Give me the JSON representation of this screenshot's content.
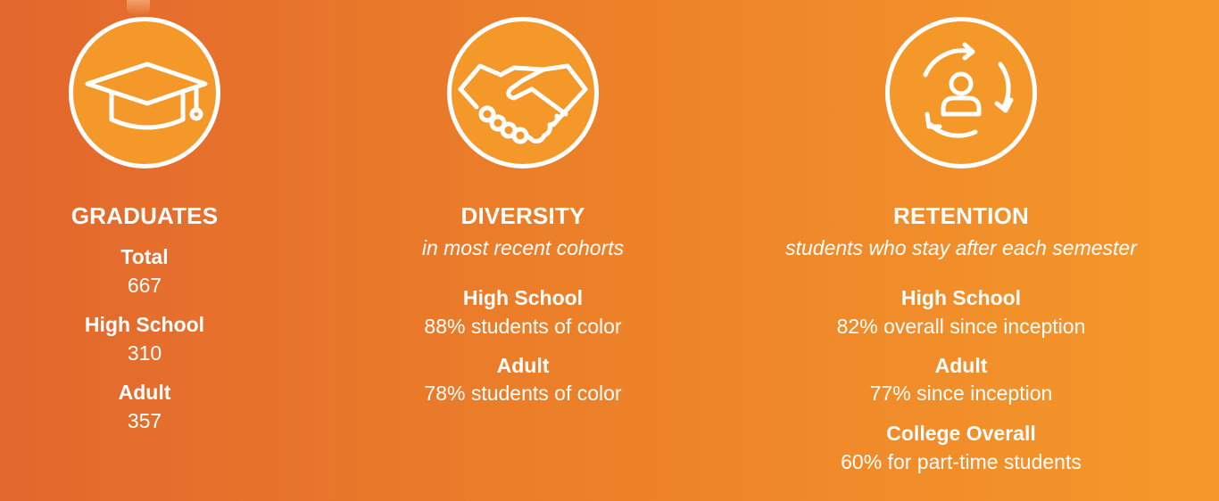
{
  "graduates": {
    "icon": "graduation-cap-icon",
    "heading": "GRADUATES",
    "stats": [
      {
        "label": "Total",
        "value": "667"
      },
      {
        "label": "High School",
        "value": "310"
      },
      {
        "label": "Adult",
        "value": "357"
      }
    ]
  },
  "diversity": {
    "icon": "handshake-icon",
    "heading": "DIVERSITY",
    "subheading": "in most recent cohorts",
    "stats": [
      {
        "label": "High School",
        "value": "88% students of color"
      },
      {
        "label": "Adult",
        "value": "78% students of color"
      }
    ]
  },
  "retention": {
    "icon": "person-cycle-icon",
    "heading": "RETENTION",
    "subheading": "students who stay after each semester",
    "stats": [
      {
        "label": "High School",
        "value": "82% overall since inception"
      },
      {
        "label": "Adult",
        "value": "77% since inception"
      },
      {
        "label": "College Overall",
        "value": "60% for part-time students"
      }
    ]
  },
  "colors": {
    "gradient_start": "#e2672d",
    "gradient_end": "#f5982a",
    "icon_circle_fill": "#f4982a",
    "text": "#ffffff"
  }
}
